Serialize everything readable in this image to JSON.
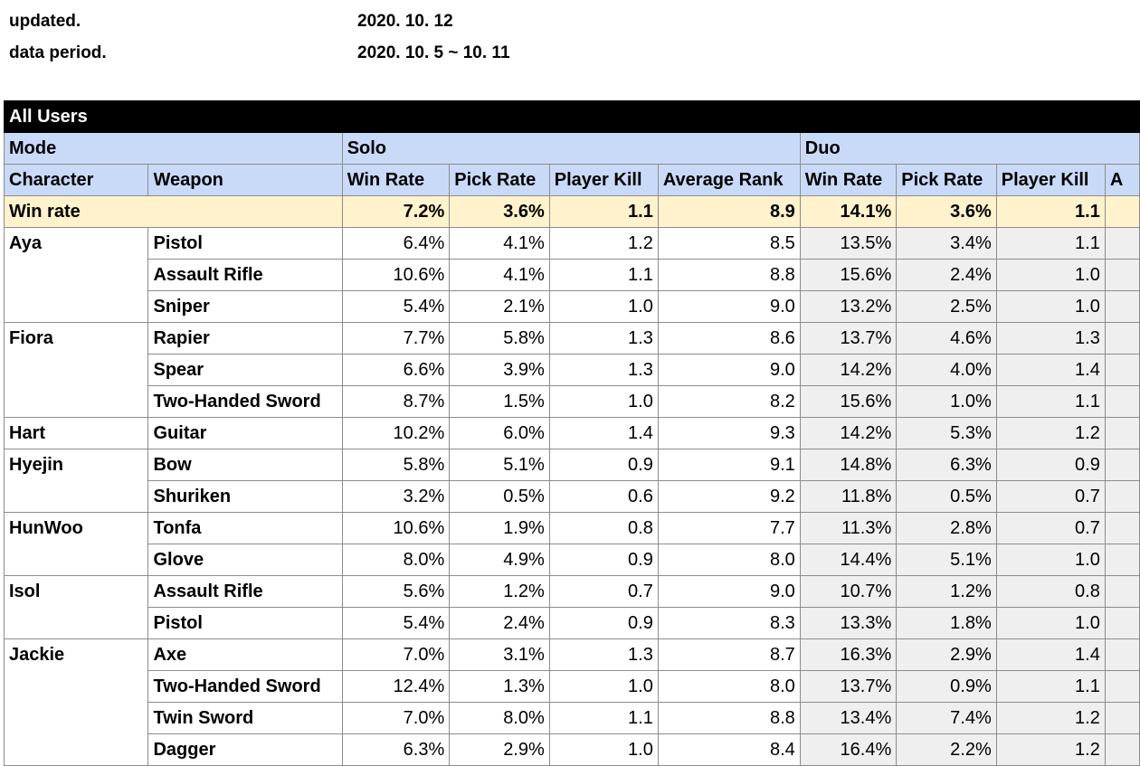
{
  "meta": {
    "updated_label": "updated.",
    "updated_value": "2020. 10. 12",
    "period_label": "data period.",
    "period_value": "2020. 10. 5 ~ 10. 11"
  },
  "table": {
    "title": "All Users",
    "mode_label": "Mode",
    "solo_label": "Solo",
    "duo_label": "Duo",
    "headers": {
      "character": "Character",
      "weapon": "Weapon",
      "solo": [
        "Win Rate",
        "Pick Rate",
        "Player Kill",
        "Average Rank"
      ],
      "duo": [
        "Win Rate",
        "Pick Rate",
        "Player Kill",
        "A"
      ]
    },
    "summary": {
      "label": "Win rate",
      "solo": [
        "7.2%",
        "3.6%",
        "1.1",
        "8.9"
      ],
      "duo": [
        "14.1%",
        "3.6%",
        "1.1",
        ""
      ]
    },
    "rows": [
      {
        "character": "Aya",
        "weapon": "Pistol",
        "solo": [
          "6.4%",
          "4.1%",
          "1.2",
          "8.5"
        ],
        "duo": [
          "13.5%",
          "3.4%",
          "1.1",
          ""
        ]
      },
      {
        "character": "",
        "weapon": "Assault Rifle",
        "solo": [
          "10.6%",
          "4.1%",
          "1.1",
          "8.8"
        ],
        "duo": [
          "15.6%",
          "2.4%",
          "1.0",
          ""
        ]
      },
      {
        "character": "",
        "weapon": "Sniper",
        "solo": [
          "5.4%",
          "2.1%",
          "1.0",
          "9.0"
        ],
        "duo": [
          "13.2%",
          "2.5%",
          "1.0",
          ""
        ]
      },
      {
        "character": "Fiora",
        "weapon": "Rapier",
        "solo": [
          "7.7%",
          "5.8%",
          "1.3",
          "8.6"
        ],
        "duo": [
          "13.7%",
          "4.6%",
          "1.3",
          ""
        ]
      },
      {
        "character": "",
        "weapon": "Spear",
        "solo": [
          "6.6%",
          "3.9%",
          "1.3",
          "9.0"
        ],
        "duo": [
          "14.2%",
          "4.0%",
          "1.4",
          ""
        ]
      },
      {
        "character": "",
        "weapon": "Two-Handed Sword",
        "solo": [
          "8.7%",
          "1.5%",
          "1.0",
          "8.2"
        ],
        "duo": [
          "15.6%",
          "1.0%",
          "1.1",
          ""
        ]
      },
      {
        "character": "Hart",
        "weapon": "Guitar",
        "solo": [
          "10.2%",
          "6.0%",
          "1.4",
          "9.3"
        ],
        "duo": [
          "14.2%",
          "5.3%",
          "1.2",
          ""
        ]
      },
      {
        "character": "Hyejin",
        "weapon": "Bow",
        "solo": [
          "5.8%",
          "5.1%",
          "0.9",
          "9.1"
        ],
        "duo": [
          "14.8%",
          "6.3%",
          "0.9",
          ""
        ]
      },
      {
        "character": "",
        "weapon": "Shuriken",
        "solo": [
          "3.2%",
          "0.5%",
          "0.6",
          "9.2"
        ],
        "duo": [
          "11.8%",
          "0.5%",
          "0.7",
          ""
        ]
      },
      {
        "character": "HunWoo",
        "weapon": "Tonfa",
        "solo": [
          "10.6%",
          "1.9%",
          "0.8",
          "7.7"
        ],
        "duo": [
          "11.3%",
          "2.8%",
          "0.7",
          ""
        ]
      },
      {
        "character": "",
        "weapon": "Glove",
        "solo": [
          "8.0%",
          "4.9%",
          "0.9",
          "8.0"
        ],
        "duo": [
          "14.4%",
          "5.1%",
          "1.0",
          ""
        ]
      },
      {
        "character": "Isol",
        "weapon": "Assault Rifle",
        "solo": [
          "5.6%",
          "1.2%",
          "0.7",
          "9.0"
        ],
        "duo": [
          "10.7%",
          "1.2%",
          "0.8",
          ""
        ]
      },
      {
        "character": "",
        "weapon": "Pistol",
        "solo": [
          "5.4%",
          "2.4%",
          "0.9",
          "8.3"
        ],
        "duo": [
          "13.3%",
          "1.8%",
          "1.0",
          ""
        ]
      },
      {
        "character": "Jackie",
        "weapon": "Axe",
        "solo": [
          "7.0%",
          "3.1%",
          "1.3",
          "8.7"
        ],
        "duo": [
          "16.3%",
          "2.9%",
          "1.4",
          ""
        ]
      },
      {
        "character": "",
        "weapon": "Two-Handed Sword",
        "solo": [
          "12.4%",
          "1.3%",
          "1.0",
          "8.0"
        ],
        "duo": [
          "13.7%",
          "0.9%",
          "1.1",
          ""
        ]
      },
      {
        "character": "",
        "weapon": "Twin Sword",
        "solo": [
          "7.0%",
          "8.0%",
          "1.1",
          "8.8"
        ],
        "duo": [
          "13.4%",
          "7.4%",
          "1.2",
          ""
        ]
      },
      {
        "character": "",
        "weapon": "Dagger",
        "solo": [
          "6.3%",
          "2.9%",
          "1.0",
          "8.4"
        ],
        "duo": [
          "16.4%",
          "2.2%",
          "1.2",
          ""
        ]
      }
    ]
  }
}
